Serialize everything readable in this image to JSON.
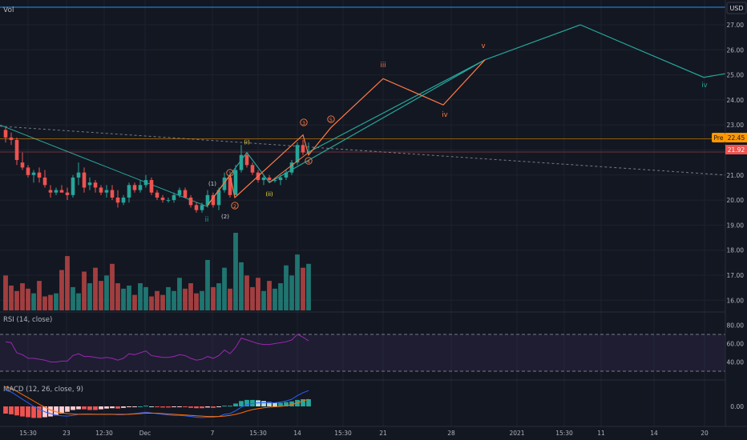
{
  "header": {
    "vol_label": "Vol",
    "currency": "USD"
  },
  "price_axis": {
    "ticks": [
      "27.00",
      "26.00",
      "25.00",
      "24.00",
      "23.00",
      "22.00",
      "21.00",
      "20.00",
      "19.00",
      "18.00",
      "17.00",
      "16.00"
    ],
    "pre_badge_label": "Pre",
    "pre_badge_value": "22.45",
    "last_badge_value": "21.92"
  },
  "rsi": {
    "label": "RSI (14, close)",
    "ticks": [
      "80.00",
      "60.00",
      "40.00"
    ],
    "upper_band": 70,
    "lower_band": 30
  },
  "macd": {
    "label": "MACD (12, 26, close, 9)",
    "ticks": [
      "0.00"
    ]
  },
  "time_axis": {
    "ticks": [
      "15:30",
      "23",
      "12:30",
      "Dec",
      "7",
      "15:30",
      "14",
      "15:30",
      "21",
      "28",
      "2021",
      "15:30",
      "11",
      "14",
      "20"
    ]
  },
  "wave_labels": {
    "main": [
      "ii",
      "iii",
      "iv",
      "v",
      "iv"
    ],
    "sub": [
      "(1)",
      "(2)",
      "(i)",
      "(ii)",
      "1",
      "2",
      "3",
      "4",
      "5"
    ]
  },
  "colors": {
    "bg": "#131722",
    "up": "#26a69a",
    "down": "#ef5350",
    "wave_green": "#26a69a",
    "wave_orange": "#ff7a45",
    "rsi_line": "#9c27b0",
    "macd_line": "#2962ff",
    "signal_line": "#ff6d00",
    "pre_badge": "#ff9800",
    "last_badge": "#ef5350"
  },
  "chart_data": {
    "type": "candlestick",
    "price": {
      "ylim": [
        15.6,
        27.3
      ],
      "candles_ohlc": [
        [
          22.8,
          22.9,
          22.3,
          22.5
        ],
        [
          22.5,
          22.7,
          22.2,
          22.4
        ],
        [
          22.4,
          22.5,
          21.4,
          21.6
        ],
        [
          21.5,
          21.9,
          21.2,
          21.3
        ],
        [
          21.3,
          21.4,
          20.9,
          21.0
        ],
        [
          21.0,
          21.2,
          20.7,
          21.1
        ],
        [
          21.1,
          21.3,
          20.7,
          20.9
        ],
        [
          20.9,
          21.2,
          20.5,
          20.6
        ],
        [
          20.4,
          20.6,
          20.1,
          20.3
        ],
        [
          20.3,
          20.5,
          20.2,
          20.4
        ],
        [
          20.4,
          20.6,
          20.3,
          20.3
        ],
        [
          20.3,
          20.5,
          20.0,
          20.2
        ],
        [
          20.2,
          21.0,
          20.1,
          20.9
        ],
        [
          20.9,
          21.5,
          20.6,
          21.1
        ],
        [
          21.1,
          21.3,
          20.3,
          20.5
        ],
        [
          20.6,
          20.9,
          20.4,
          20.7
        ],
        [
          20.7,
          20.8,
          20.3,
          20.5
        ],
        [
          20.5,
          20.6,
          20.2,
          20.3
        ],
        [
          20.3,
          20.6,
          20.1,
          20.4
        ],
        [
          20.4,
          20.6,
          20.0,
          20.1
        ],
        [
          20.1,
          20.4,
          19.7,
          19.9
        ],
        [
          19.9,
          20.2,
          19.8,
          20.1
        ],
        [
          20.1,
          20.7,
          19.9,
          20.6
        ],
        [
          20.6,
          20.7,
          20.3,
          20.4
        ],
        [
          20.4,
          20.8,
          20.3,
          20.6
        ],
        [
          20.6,
          21.0,
          20.5,
          20.8
        ],
        [
          20.8,
          20.9,
          20.2,
          20.3
        ],
        [
          20.3,
          20.4,
          20.0,
          20.1
        ],
        [
          20.1,
          20.2,
          19.9,
          20.0
        ],
        [
          20.0,
          20.1,
          19.9,
          20.0
        ],
        [
          20.0,
          20.3,
          19.9,
          20.2
        ],
        [
          20.2,
          20.5,
          20.1,
          20.4
        ],
        [
          20.4,
          20.5,
          20.1,
          20.1
        ],
        [
          20.1,
          20.2,
          19.7,
          19.8
        ],
        [
          19.8,
          19.9,
          19.5,
          19.6
        ],
        [
          19.6,
          19.9,
          19.5,
          19.8
        ],
        [
          19.8,
          20.4,
          19.7,
          20.2
        ],
        [
          20.2,
          20.3,
          19.7,
          19.8
        ],
        [
          19.8,
          20.5,
          19.6,
          20.4
        ],
        [
          20.4,
          21.1,
          20.3,
          20.9
        ],
        [
          20.9,
          21.0,
          20.1,
          20.2
        ],
        [
          20.2,
          21.4,
          20.2,
          21.2
        ],
        [
          21.2,
          22.2,
          21.1,
          21.8
        ],
        [
          21.8,
          21.9,
          21.3,
          21.4
        ],
        [
          21.4,
          21.5,
          21.0,
          21.1
        ],
        [
          21.1,
          21.2,
          20.7,
          20.8
        ],
        [
          20.8,
          21.0,
          20.6,
          20.9
        ],
        [
          20.9,
          21.0,
          20.7,
          20.8
        ],
        [
          20.8,
          20.9,
          20.7,
          20.8
        ],
        [
          20.8,
          21.0,
          20.6,
          20.9
        ],
        [
          20.9,
          21.2,
          20.8,
          21.1
        ],
        [
          21.1,
          21.6,
          21.0,
          21.5
        ],
        [
          21.5,
          22.3,
          21.4,
          22.2
        ],
        [
          22.2,
          22.4,
          21.8,
          21.9
        ],
        [
          21.9,
          22.3,
          21.8,
          21.92
        ]
      ]
    },
    "volume_relative": [
      0.45,
      0.32,
      0.25,
      0.35,
      0.28,
      0.22,
      0.38,
      0.18,
      0.2,
      0.22,
      0.52,
      0.7,
      0.3,
      0.22,
      0.5,
      0.35,
      0.55,
      0.38,
      0.45,
      0.6,
      0.35,
      0.28,
      0.32,
      0.2,
      0.35,
      0.3,
      0.18,
      0.25,
      0.2,
      0.3,
      0.25,
      0.42,
      0.28,
      0.35,
      0.22,
      0.25,
      0.65,
      0.3,
      0.35,
      0.55,
      0.28,
      1.0,
      0.62,
      0.45,
      0.3,
      0.42,
      0.25,
      0.38,
      0.28,
      0.35,
      0.58,
      0.45,
      0.72,
      0.55,
      0.6
    ],
    "rsi_values": [
      62,
      61,
      50,
      48,
      44,
      44,
      43,
      42,
      40,
      40,
      41,
      41,
      47,
      49,
      46,
      46,
      45,
      44,
      45,
      44,
      42,
      44,
      49,
      48,
      50,
      52,
      47,
      46,
      45,
      45,
      46,
      48,
      47,
      44,
      42,
      43,
      46,
      44,
      47,
      53,
      49,
      56,
      66,
      64,
      62,
      60,
      59,
      59,
      60,
      61,
      62,
      64,
      70,
      67,
      63
    ],
    "macd_histogram": [
      -0.2,
      -0.22,
      -0.25,
      -0.28,
      -0.3,
      -0.32,
      -0.32,
      -0.3,
      -0.28,
      -0.25,
      -0.2,
      -0.15,
      -0.1,
      -0.08,
      -0.08,
      -0.1,
      -0.1,
      -0.08,
      -0.06,
      -0.05,
      -0.06,
      -0.04,
      -0.02,
      -0.01,
      0.0,
      0.02,
      0.0,
      -0.02,
      -0.03,
      -0.03,
      -0.02,
      -0.01,
      -0.02,
      -0.04,
      -0.05,
      -0.05,
      -0.03,
      -0.04,
      -0.02,
      0.02,
      0.02,
      0.08,
      0.15,
      0.18,
      0.18,
      0.17,
      0.15,
      0.12,
      0.1,
      0.1,
      0.12,
      0.14,
      0.18,
      0.2,
      0.2
    ],
    "macd_line": [
      0.45,
      0.4,
      0.3,
      0.2,
      0.1,
      0.0,
      -0.08,
      -0.15,
      -0.2,
      -0.24,
      -0.26,
      -0.27,
      -0.25,
      -0.22,
      -0.21,
      -0.21,
      -0.22,
      -0.22,
      -0.22,
      -0.22,
      -0.23,
      -0.23,
      -0.21,
      -0.2,
      -0.18,
      -0.16,
      -0.18,
      -0.2,
      -0.22,
      -0.24,
      -0.25,
      -0.25,
      -0.26,
      -0.28,
      -0.3,
      -0.31,
      -0.3,
      -0.3,
      -0.28,
      -0.22,
      -0.2,
      -0.12,
      -0.02,
      0.05,
      0.08,
      0.1,
      0.1,
      0.1,
      0.1,
      0.12,
      0.15,
      0.2,
      0.3,
      0.38,
      0.44
    ],
    "signal_line": [
      0.55,
      0.5,
      0.42,
      0.33,
      0.24,
      0.15,
      0.06,
      -0.02,
      -0.1,
      -0.15,
      -0.18,
      -0.2,
      -0.21,
      -0.22,
      -0.22,
      -0.22,
      -0.22,
      -0.22,
      -0.22,
      -0.22,
      -0.22,
      -0.22,
      -0.22,
      -0.21,
      -0.2,
      -0.19,
      -0.19,
      -0.19,
      -0.2,
      -0.21,
      -0.22,
      -0.23,
      -0.24,
      -0.25,
      -0.26,
      -0.27,
      -0.28,
      -0.28,
      -0.28,
      -0.27,
      -0.25,
      -0.22,
      -0.18,
      -0.13,
      -0.09,
      -0.06,
      -0.04,
      -0.02,
      -0.01,
      0.0,
      0.02,
      0.05,
      0.1,
      0.15,
      0.2
    ]
  }
}
